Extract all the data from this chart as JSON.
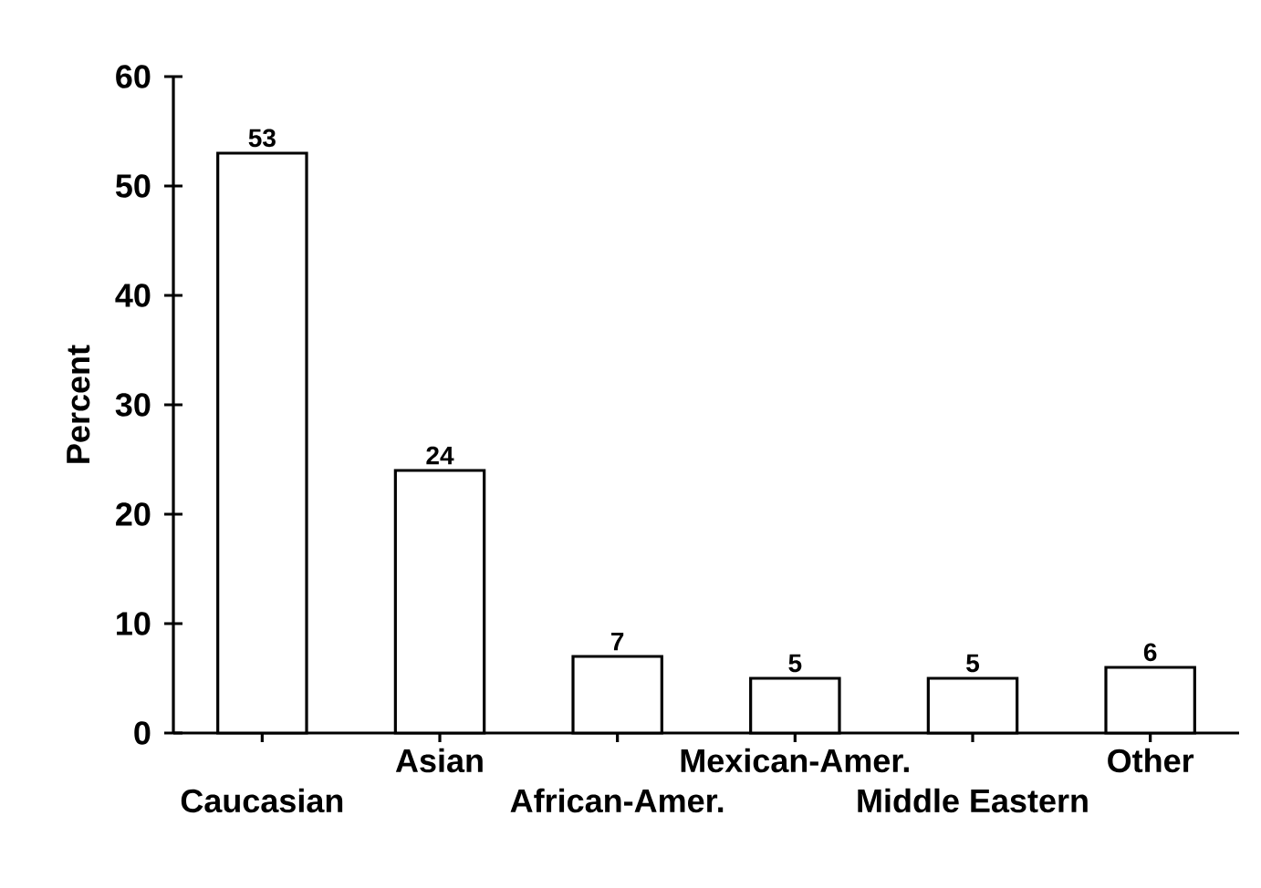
{
  "chart_data": {
    "type": "bar",
    "ylabel": "Percent",
    "categories": [
      "Caucasian",
      "Asian",
      "African-Amer.",
      "Mexican-Amer.",
      "Middle Eastern",
      "Other"
    ],
    "values": [
      53,
      24,
      7,
      5,
      5,
      6
    ],
    "color": "#ffffff",
    "ylim": [
      0,
      60
    ],
    "yticks": [
      0,
      10,
      20,
      30,
      40,
      50,
      60
    ],
    "data_labels": true
  }
}
